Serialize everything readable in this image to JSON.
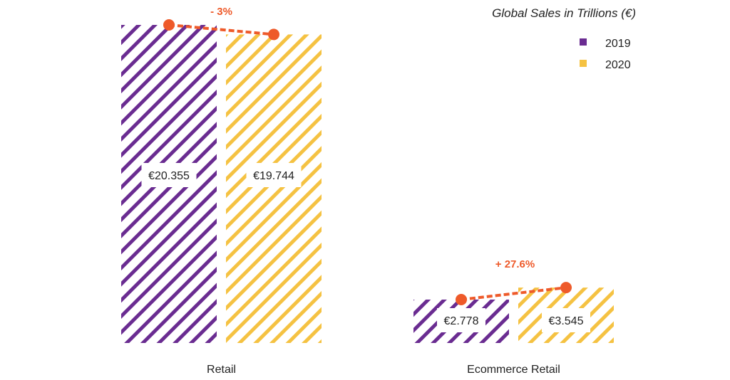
{
  "chart_data": {
    "type": "bar",
    "title": "Global Sales in Trillions (€)",
    "xlabel": "",
    "ylabel": "",
    "categories": [
      "Retail",
      "Ecommerce Retail"
    ],
    "series": [
      {
        "name": "2019",
        "values": [
          20.355,
          2.778
        ],
        "labels": [
          "€20.355",
          "€2.778"
        ]
      },
      {
        "name": "2020",
        "values": [
          19.744,
          3.545
        ],
        "labels": [
          "€19.744",
          "€3.545"
        ]
      }
    ],
    "changes": [
      "- 3%",
      "+ 27.6%"
    ],
    "ylim": [
      0,
      20.355
    ],
    "grid": false,
    "legend_position": "top-right",
    "fill_pattern": "diagonal-hatch"
  },
  "colors": {
    "series_2019": "#6a2c91",
    "series_2020": "#f5c242",
    "change_marker": "#ee5a2a",
    "text": "#222222"
  }
}
